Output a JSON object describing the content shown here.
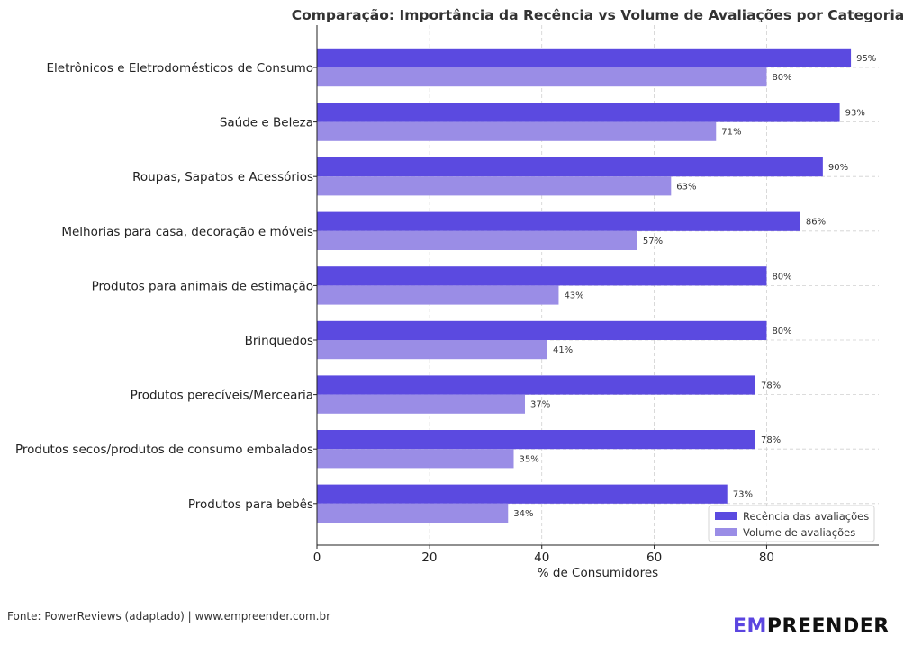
{
  "chart_data": {
    "type": "bar",
    "orientation": "horizontal",
    "title": "Comparação: Importância da Recência vs Volume de Avaliações por Categoria",
    "xlabel": "% de Consumidores",
    "ylabel": "",
    "xlim": [
      0,
      100
    ],
    "xticks": [
      0,
      20,
      40,
      60,
      80
    ],
    "grid": true,
    "legend_position": "bottom-right",
    "categories": [
      "Eletrônicos e Eletrodomésticos de Consumo",
      "Saúde e Beleza",
      "Roupas, Sapatos e Acessórios",
      "Melhorias para casa, decoração e móveis",
      "Produtos para animais de estimação",
      "Brinquedos",
      "Produtos perecíveis/Mercearia",
      "Produtos secos/produtos de consumo embalados",
      "Produtos para bebês"
    ],
    "series": [
      {
        "name": "Recência das avaliações",
        "color": "#5b4ae0",
        "values": [
          95,
          93,
          90,
          86,
          80,
          80,
          78,
          78,
          73
        ]
      },
      {
        "name": "Volume de avaliações",
        "color": "#9a8de6",
        "values": [
          80,
          71,
          63,
          57,
          43,
          41,
          37,
          35,
          34
        ]
      }
    ],
    "value_label_suffix": "%"
  },
  "footer": {
    "source": "Fonte: PowerReviews (adaptado) | www.empreender.com.br",
    "logo_accent": "EM",
    "logo_rest": "PREENDER"
  }
}
